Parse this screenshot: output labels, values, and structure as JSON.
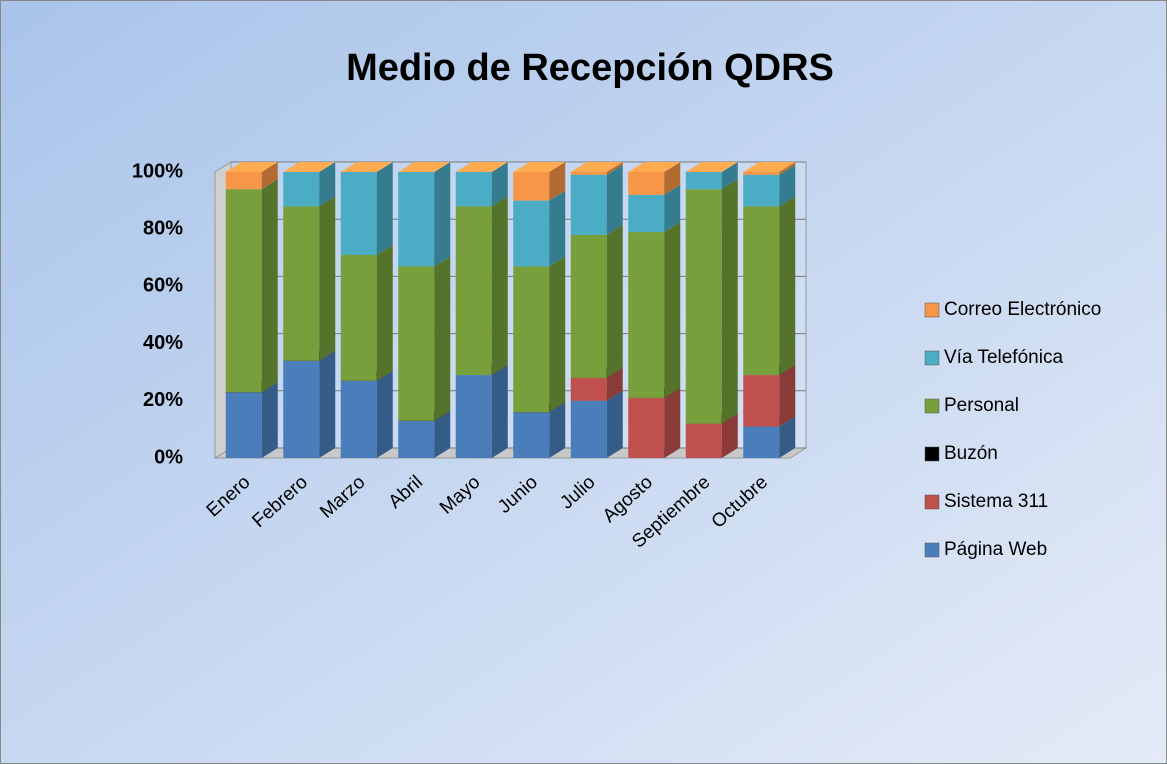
{
  "chart_data": {
    "type": "bar3d_stacked",
    "title": "Medio de Recepción QDRS",
    "categories": [
      "Enero",
      "Febrero",
      "Marzo",
      "Abril",
      "Mayo",
      "Junio",
      "Julio",
      "Agosto",
      "Septiembre",
      "Octubre"
    ],
    "series": [
      {
        "name": "Página Web",
        "color": "#4a7ebb",
        "values": [
          23,
          34,
          27,
          13,
          29,
          16,
          20,
          0,
          0,
          11
        ]
      },
      {
        "name": "Sistema 311",
        "color": "#c0504d",
        "values": [
          0,
          0,
          0,
          0,
          0,
          0,
          8,
          21,
          12,
          18
        ]
      },
      {
        "name": "Buzón",
        "color": "#000000",
        "values": [
          0,
          0,
          0,
          0,
          0,
          0,
          0,
          0,
          0,
          0
        ]
      },
      {
        "name": "Personal",
        "color": "#77a03c",
        "values": [
          71,
          54,
          44,
          54,
          59,
          51,
          50,
          58,
          82,
          59
        ]
      },
      {
        "name": "Vía Telefónica",
        "color": "#4bacc6",
        "values": [
          0,
          12,
          29,
          33,
          12,
          23,
          21,
          13,
          6,
          11
        ]
      },
      {
        "name": "Correo Electrónico",
        "color": "#f79646",
        "values": [
          6,
          0,
          0,
          0,
          0,
          10,
          1,
          8,
          0,
          1
        ]
      }
    ],
    "ylim": [
      0,
      100
    ],
    "yticks": [
      {
        "value": 0,
        "label": "0%"
      },
      {
        "value": 20,
        "label": "20%"
      },
      {
        "value": 40,
        "label": "40%"
      },
      {
        "value": 60,
        "label": "60%"
      },
      {
        "value": 80,
        "label": "80%"
      },
      {
        "value": 100,
        "label": "100%"
      }
    ],
    "grid": true,
    "legend": "right"
  }
}
